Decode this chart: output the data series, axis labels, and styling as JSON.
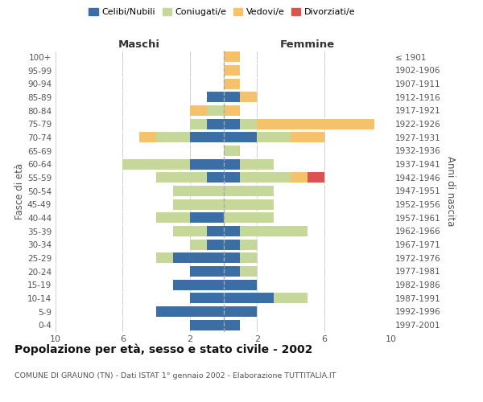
{
  "age_groups": [
    "0-4",
    "5-9",
    "10-14",
    "15-19",
    "20-24",
    "25-29",
    "30-34",
    "35-39",
    "40-44",
    "45-49",
    "50-54",
    "55-59",
    "60-64",
    "65-69",
    "70-74",
    "75-79",
    "80-84",
    "85-89",
    "90-94",
    "95-99",
    "100+"
  ],
  "birth_years": [
    "1997-2001",
    "1992-1996",
    "1987-1991",
    "1982-1986",
    "1977-1981",
    "1972-1976",
    "1967-1971",
    "1962-1966",
    "1957-1961",
    "1952-1956",
    "1947-1951",
    "1942-1946",
    "1937-1941",
    "1932-1936",
    "1927-1931",
    "1922-1926",
    "1917-1921",
    "1912-1916",
    "1907-1911",
    "1902-1906",
    "≤ 1901"
  ],
  "males": {
    "celibi": [
      2,
      4,
      2,
      3,
      2,
      3,
      1,
      1,
      2,
      0,
      0,
      1,
      2,
      0,
      2,
      1,
      0,
      1,
      0,
      0,
      0
    ],
    "coniugati": [
      0,
      0,
      0,
      0,
      0,
      1,
      1,
      2,
      2,
      3,
      3,
      3,
      4,
      0,
      2,
      1,
      1,
      0,
      0,
      0,
      0
    ],
    "vedovi": [
      0,
      0,
      0,
      0,
      0,
      0,
      0,
      0,
      0,
      0,
      0,
      0,
      0,
      0,
      1,
      0,
      1,
      0,
      0,
      0,
      0
    ],
    "divorziati": [
      0,
      0,
      0,
      0,
      0,
      0,
      0,
      0,
      0,
      0,
      0,
      0,
      0,
      0,
      0,
      0,
      0,
      0,
      0,
      0,
      0
    ]
  },
  "females": {
    "nubili": [
      1,
      2,
      3,
      2,
      1,
      1,
      1,
      1,
      0,
      0,
      0,
      1,
      1,
      0,
      2,
      1,
      0,
      1,
      0,
      0,
      0
    ],
    "coniugate": [
      0,
      0,
      2,
      0,
      1,
      1,
      1,
      4,
      3,
      3,
      3,
      3,
      2,
      1,
      2,
      1,
      0,
      0,
      0,
      0,
      0
    ],
    "vedove": [
      0,
      0,
      0,
      0,
      0,
      0,
      0,
      0,
      0,
      0,
      0,
      1,
      0,
      0,
      2,
      7,
      1,
      1,
      1,
      1,
      1
    ],
    "divorziate": [
      0,
      0,
      0,
      0,
      0,
      0,
      0,
      0,
      0,
      0,
      0,
      1,
      0,
      0,
      0,
      0,
      0,
      0,
      0,
      0,
      0
    ]
  },
  "colors": {
    "celibi_nubili": "#3a6ea5",
    "coniugati": "#c5d89a",
    "vedovi": "#f5c26b",
    "divorziati": "#d9534f"
  },
  "title": "Popolazione per età, sesso e stato civile - 2002",
  "subtitle": "COMUNE DI GRAUNO (TN) - Dati ISTAT 1° gennaio 2002 - Elaborazione TUTTITALIA.IT",
  "xlabel_left": "Maschi",
  "xlabel_right": "Femmine",
  "ylabel_left": "Fasce di età",
  "ylabel_right": "Anni di nascita",
  "xlim": 10,
  "bg_color": "#ffffff",
  "grid_color": "#d0d0d0"
}
